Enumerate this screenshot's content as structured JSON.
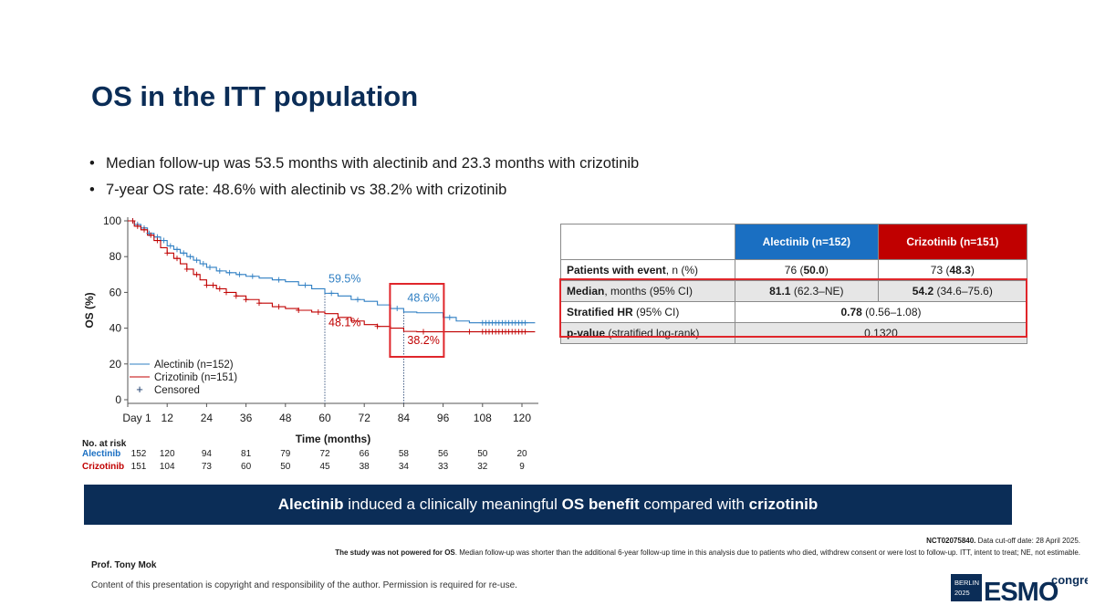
{
  "slide": {
    "title": "OS in the ITT population",
    "bullets": [
      "Median follow-up was 53.5 months with alectinib and 23.3 months with crizotinib",
      "7-year OS rate: 48.6% with alectinib vs 38.2% with crizotinib"
    ],
    "bullet_marker": "•"
  },
  "chart_data": {
    "type": "line",
    "subtype": "kaplan-meier",
    "xlabel": "Time (months)",
    "ylabel": "OS (%)",
    "xlim": [
      0,
      125
    ],
    "ylim": [
      0,
      100
    ],
    "x_ticks": [
      0,
      12,
      24,
      36,
      48,
      60,
      72,
      84,
      96,
      108,
      120
    ],
    "x_tick_labels": [
      "Day 1",
      "12",
      "24",
      "36",
      "48",
      "60",
      "72",
      "84",
      "96",
      "108",
      "120"
    ],
    "y_ticks": [
      0,
      20,
      40,
      60,
      80,
      100
    ],
    "y_tick_labels": [
      "0",
      "20",
      "40",
      "60",
      "80",
      "100"
    ],
    "grid": false,
    "legend_position": "bottom-left",
    "legend": [
      {
        "label": "Alectinib (n=152)",
        "symbol": "line",
        "color": "#2f7fc3"
      },
      {
        "label": "Crizotinib (n=151)",
        "symbol": "line",
        "color": "#c00000"
      },
      {
        "label": "Censored",
        "symbol": "+",
        "color": "#1a3a6b"
      }
    ],
    "series": [
      {
        "name": "Alectinib (n=152)",
        "color": "#2f7fc3",
        "x": [
          0,
          2,
          4,
          6,
          8,
          10,
          12,
          14,
          16,
          18,
          20,
          22,
          24,
          27,
          30,
          33,
          36,
          40,
          44,
          48,
          52,
          56,
          60,
          64,
          68,
          72,
          76,
          80,
          84,
          88,
          92,
          96,
          100,
          104,
          108,
          114,
          120,
          124
        ],
        "y": [
          100,
          98,
          96,
          93,
          91,
          89,
          86,
          84,
          82,
          80,
          78,
          76,
          74,
          72,
          71,
          70,
          69,
          68,
          67,
          66,
          64,
          62,
          59.5,
          58,
          56,
          55,
          53,
          51,
          49,
          48.6,
          48.6,
          46,
          44,
          43,
          43,
          43,
          43,
          43
        ]
      },
      {
        "name": "Crizotinib (n=151)",
        "color": "#c00000",
        "x": [
          0,
          2,
          4,
          6,
          8,
          10,
          12,
          14,
          16,
          18,
          20,
          22,
          24,
          27,
          30,
          33,
          36,
          40,
          44,
          48,
          52,
          56,
          60,
          64,
          68,
          72,
          76,
          80,
          84,
          88,
          92,
          96,
          100,
          104,
          108,
          114,
          120,
          124
        ],
        "y": [
          100,
          97,
          95,
          92,
          89,
          85,
          82,
          79,
          76,
          73,
          70,
          67,
          64,
          62,
          60,
          58,
          56,
          54,
          52,
          51,
          50,
          49,
          48.1,
          46,
          44,
          42,
          41,
          40,
          38.2,
          38,
          38,
          38,
          38,
          38,
          38,
          38,
          38,
          38
        ]
      }
    ],
    "censored_marks": [
      {
        "series": "Alectinib (n=152)",
        "x": [
          1.5,
          3,
          5,
          6.5,
          9,
          11,
          13,
          15,
          17,
          19,
          21,
          23,
          25,
          28,
          31,
          34,
          38,
          46,
          54,
          62,
          70,
          82,
          98,
          108,
          109,
          110,
          111,
          112,
          113,
          114,
          115,
          116,
          117,
          118,
          119,
          120,
          121
        ]
      },
      {
        "series": "Crizotinib (n=151)",
        "x": [
          1.5,
          3,
          5,
          7,
          9,
          12,
          15,
          18,
          21,
          24,
          26,
          28,
          30,
          33,
          36,
          40,
          46,
          52,
          58,
          76,
          90,
          104,
          108,
          109,
          110,
          111,
          112,
          113,
          114,
          115,
          116,
          117,
          118,
          119,
          120,
          121
        ]
      }
    ],
    "reference_lines_x": [
      60,
      84
    ],
    "annotations": [
      {
        "text": "59.5%",
        "x": 60,
        "y": 59.5,
        "series": "Alectinib (n=152)",
        "boxed": false
      },
      {
        "text": "48.1%",
        "x": 60,
        "y": 48.1,
        "series": "Crizotinib (n=151)",
        "boxed": false
      },
      {
        "text": "48.6%",
        "x": 84,
        "y": 48.6,
        "series": "Alectinib (n=152)",
        "boxed": true
      },
      {
        "text": "38.2%",
        "x": 84,
        "y": 38.2,
        "series": "Crizotinib (n=151)",
        "boxed": true
      }
    ],
    "number_at_risk": {
      "title": "No. at risk",
      "rows": [
        {
          "label": "Alectinib",
          "color": "#1a6fc2",
          "values": [
            152,
            120,
            94,
            81,
            79,
            72,
            66,
            58,
            56,
            50,
            20
          ]
        },
        {
          "label": "Crizotinib",
          "color": "#c00000",
          "values": [
            151,
            104,
            73,
            60,
            50,
            45,
            38,
            34,
            33,
            32,
            9
          ]
        }
      ]
    }
  },
  "results_table": {
    "header": {
      "col1": "",
      "alectinib": "Alectinib (n=152)",
      "crizotinib": "Crizotinib (n=151)"
    },
    "rows": [
      {
        "label_bold": "Patients with event",
        "label_rest": ", n (%)",
        "alec_bold": "76",
        "alec_pre": "",
        "alec_mid": " (",
        "alec_b2": "50.0",
        "alec_end": ")",
        "criz_bold": "73",
        "criz_mid": " (",
        "criz_b2": "48.3",
        "criz_end": ")"
      },
      {
        "label_bold": "Median",
        "label_rest": ", months (95% CI)",
        "alec_bold": "81.1",
        "alec_rest": " (62.3–NE)",
        "criz_bold": "54.2",
        "criz_rest": " (34.6–75.6)"
      },
      {
        "label_bold": "Stratified HR",
        "label_rest": " (95% CI)",
        "merged_bold": "0.78",
        "merged_rest": " (0.56–1.08)"
      },
      {
        "label_bold": "p-value",
        "label_rest": " (stratified log-rank)",
        "merged": "0.1320"
      }
    ]
  },
  "banner": {
    "part1": "Alectinib",
    "part2": " induced a clinically meaningful ",
    "part3": "OS benefit",
    "part4": " compared with ",
    "part5": "crizotinib"
  },
  "footnotes": {
    "line1_bold": "NCT02075840.",
    "line1_rest": " Data cut-off date: 28 April 2025.",
    "line2_bold": "The study was not powered for OS",
    "line2_rest": ". Median follow-up was shorter than the additional 6-year follow-up time in this analysis due to patients who died, withdrew consent or were lost to follow-up. ITT, intent to treat; NE, not estimable."
  },
  "presenter": "Prof. Tony Mok",
  "copyright": "Content of this presentation is copyright and responsibility of the author. Permission is required for re-use.",
  "logo": {
    "city": "BERLIN",
    "year": "2025",
    "brand": "ESMO",
    "suffix": "congress",
    "colors": {
      "navy": "#0b2d57",
      "green": "#3aa935",
      "light": "#9fb9d9"
    }
  }
}
